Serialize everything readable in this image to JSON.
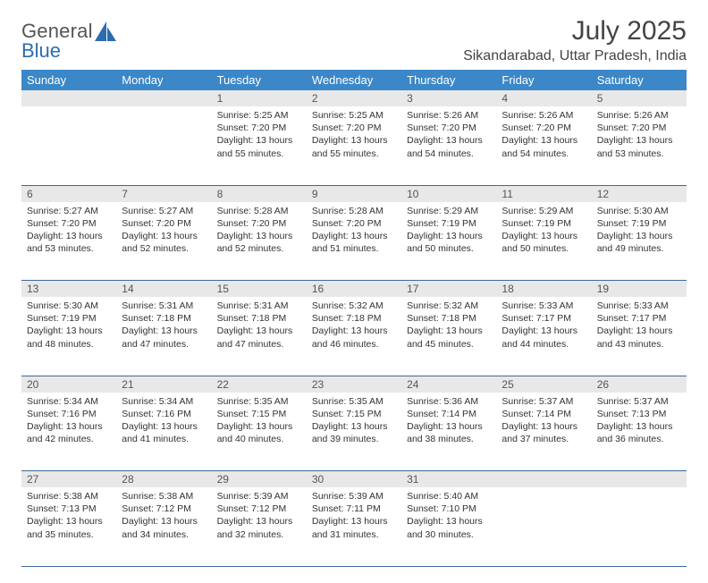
{
  "logo": {
    "text1": "General",
    "text2": "Blue"
  },
  "title": "July 2025",
  "location": "Sikandarabad, Uttar Pradesh, India",
  "colors": {
    "header_bg": "#3b87c8",
    "header_text": "#ffffff",
    "daynum_bg": "#e8e8e8",
    "row_border": "#3b6a9a",
    "logo_gray": "#6a6a6a",
    "logo_blue": "#2a6db0"
  },
  "day_names": [
    "Sunday",
    "Monday",
    "Tuesday",
    "Wednesday",
    "Thursday",
    "Friday",
    "Saturday"
  ],
  "weeks": [
    {
      "nums": [
        "",
        "",
        "1",
        "2",
        "3",
        "4",
        "5"
      ],
      "cells": [
        null,
        null,
        {
          "sr": "5:25 AM",
          "ss": "7:20 PM",
          "dl": "13 hours and 55 minutes."
        },
        {
          "sr": "5:25 AM",
          "ss": "7:20 PM",
          "dl": "13 hours and 55 minutes."
        },
        {
          "sr": "5:26 AM",
          "ss": "7:20 PM",
          "dl": "13 hours and 54 minutes."
        },
        {
          "sr": "5:26 AM",
          "ss": "7:20 PM",
          "dl": "13 hours and 54 minutes."
        },
        {
          "sr": "5:26 AM",
          "ss": "7:20 PM",
          "dl": "13 hours and 53 minutes."
        }
      ]
    },
    {
      "nums": [
        "6",
        "7",
        "8",
        "9",
        "10",
        "11",
        "12"
      ],
      "cells": [
        {
          "sr": "5:27 AM",
          "ss": "7:20 PM",
          "dl": "13 hours and 53 minutes."
        },
        {
          "sr": "5:27 AM",
          "ss": "7:20 PM",
          "dl": "13 hours and 52 minutes."
        },
        {
          "sr": "5:28 AM",
          "ss": "7:20 PM",
          "dl": "13 hours and 52 minutes."
        },
        {
          "sr": "5:28 AM",
          "ss": "7:20 PM",
          "dl": "13 hours and 51 minutes."
        },
        {
          "sr": "5:29 AM",
          "ss": "7:19 PM",
          "dl": "13 hours and 50 minutes."
        },
        {
          "sr": "5:29 AM",
          "ss": "7:19 PM",
          "dl": "13 hours and 50 minutes."
        },
        {
          "sr": "5:30 AM",
          "ss": "7:19 PM",
          "dl": "13 hours and 49 minutes."
        }
      ]
    },
    {
      "nums": [
        "13",
        "14",
        "15",
        "16",
        "17",
        "18",
        "19"
      ],
      "cells": [
        {
          "sr": "5:30 AM",
          "ss": "7:19 PM",
          "dl": "13 hours and 48 minutes."
        },
        {
          "sr": "5:31 AM",
          "ss": "7:18 PM",
          "dl": "13 hours and 47 minutes."
        },
        {
          "sr": "5:31 AM",
          "ss": "7:18 PM",
          "dl": "13 hours and 47 minutes."
        },
        {
          "sr": "5:32 AM",
          "ss": "7:18 PM",
          "dl": "13 hours and 46 minutes."
        },
        {
          "sr": "5:32 AM",
          "ss": "7:18 PM",
          "dl": "13 hours and 45 minutes."
        },
        {
          "sr": "5:33 AM",
          "ss": "7:17 PM",
          "dl": "13 hours and 44 minutes."
        },
        {
          "sr": "5:33 AM",
          "ss": "7:17 PM",
          "dl": "13 hours and 43 minutes."
        }
      ]
    },
    {
      "nums": [
        "20",
        "21",
        "22",
        "23",
        "24",
        "25",
        "26"
      ],
      "cells": [
        {
          "sr": "5:34 AM",
          "ss": "7:16 PM",
          "dl": "13 hours and 42 minutes."
        },
        {
          "sr": "5:34 AM",
          "ss": "7:16 PM",
          "dl": "13 hours and 41 minutes."
        },
        {
          "sr": "5:35 AM",
          "ss": "7:15 PM",
          "dl": "13 hours and 40 minutes."
        },
        {
          "sr": "5:35 AM",
          "ss": "7:15 PM",
          "dl": "13 hours and 39 minutes."
        },
        {
          "sr": "5:36 AM",
          "ss": "7:14 PM",
          "dl": "13 hours and 38 minutes."
        },
        {
          "sr": "5:37 AM",
          "ss": "7:14 PM",
          "dl": "13 hours and 37 minutes."
        },
        {
          "sr": "5:37 AM",
          "ss": "7:13 PM",
          "dl": "13 hours and 36 minutes."
        }
      ]
    },
    {
      "nums": [
        "27",
        "28",
        "29",
        "30",
        "31",
        "",
        ""
      ],
      "cells": [
        {
          "sr": "5:38 AM",
          "ss": "7:13 PM",
          "dl": "13 hours and 35 minutes."
        },
        {
          "sr": "5:38 AM",
          "ss": "7:12 PM",
          "dl": "13 hours and 34 minutes."
        },
        {
          "sr": "5:39 AM",
          "ss": "7:12 PM",
          "dl": "13 hours and 32 minutes."
        },
        {
          "sr": "5:39 AM",
          "ss": "7:11 PM",
          "dl": "13 hours and 31 minutes."
        },
        {
          "sr": "5:40 AM",
          "ss": "7:10 PM",
          "dl": "13 hours and 30 minutes."
        },
        null,
        null
      ]
    }
  ],
  "labels": {
    "sunrise": "Sunrise:",
    "sunset": "Sunset:",
    "daylight": "Daylight:"
  }
}
